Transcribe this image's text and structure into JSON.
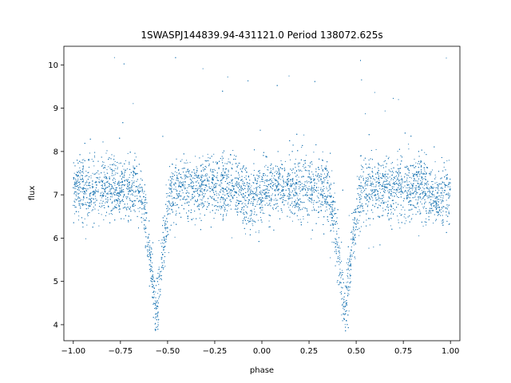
{
  "chart_data": {
    "type": "scatter",
    "title": "1SWASPJ144839.94-431121.0 Period 138072.625s",
    "xlabel": "phase",
    "ylabel": "flux",
    "xlim": [
      -1.05,
      1.05
    ],
    "ylim": [
      3.63,
      10.43
    ],
    "xticks": [
      -1.0,
      -0.75,
      -0.5,
      -0.25,
      0.0,
      0.25,
      0.5,
      0.75,
      1.0
    ],
    "xtick_labels": [
      "−1.00",
      "−0.75",
      "−0.50",
      "−0.25",
      "0.00",
      "0.25",
      "0.50",
      "0.75",
      "1.00"
    ],
    "yticks": [
      4,
      5,
      6,
      7,
      8,
      9,
      10
    ],
    "ytick_labels": [
      "4",
      "5",
      "6",
      "7",
      "8",
      "9",
      "10"
    ],
    "grid": false,
    "legend": "none",
    "marker_color": "#1f77b4",
    "series": [
      {
        "baseline_flux": 7.15,
        "scatter_std": 0.35,
        "phase_range": [
          -1.0,
          1.0
        ],
        "primary_eclipse": {
          "phases": [
            -0.56,
            0.44
          ],
          "min_flux": 4.2,
          "half_width": 0.09
        },
        "secondary_eclipse": {
          "phases": [
            -0.06,
            0.94
          ],
          "min_flux": 6.85,
          "half_width": 0.08
        },
        "points": [
          [
            -1.0,
            7.2
          ],
          [
            -0.9,
            7.1
          ],
          [
            -0.8,
            7.2
          ],
          [
            -0.7,
            7.0
          ],
          [
            -0.64,
            6.5
          ],
          [
            -0.6,
            5.5
          ],
          [
            -0.56,
            4.25
          ],
          [
            -0.52,
            5.4
          ],
          [
            -0.48,
            6.5
          ],
          [
            -0.4,
            6.9
          ],
          [
            -0.3,
            7.1
          ],
          [
            -0.2,
            7.2
          ],
          [
            -0.1,
            7.1
          ],
          [
            0.0,
            7.2
          ],
          [
            0.1,
            7.1
          ],
          [
            0.2,
            7.2
          ],
          [
            0.3,
            7.0
          ],
          [
            0.36,
            6.5
          ],
          [
            0.4,
            5.5
          ],
          [
            0.44,
            4.25
          ],
          [
            0.48,
            5.4
          ],
          [
            0.52,
            6.5
          ],
          [
            0.6,
            6.9
          ],
          [
            0.7,
            7.1
          ],
          [
            0.8,
            7.2
          ],
          [
            0.9,
            7.1
          ],
          [
            1.0,
            7.2
          ]
        ]
      }
    ]
  }
}
